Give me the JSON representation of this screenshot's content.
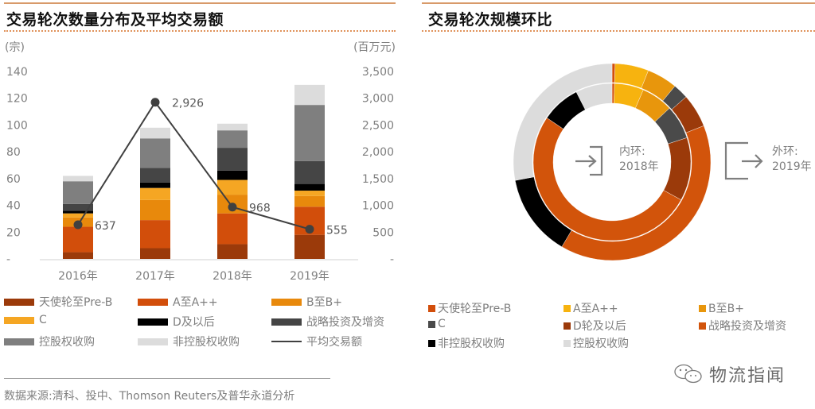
{
  "left_panel": {
    "title": "交易轮次数量分布及平均交易额",
    "left_axis_unit": "(宗)",
    "right_axis_unit": "(百万元)",
    "left_ticks": [
      "140",
      "120",
      "100",
      "80",
      "60",
      "40",
      "20",
      "-"
    ],
    "right_ticks": [
      "3,500",
      "3,000",
      "2,500",
      "2,000",
      "1,500",
      "1,000",
      "500",
      "-"
    ],
    "legend": [
      {
        "label": "天使轮至Pre-B",
        "color": "#9b3a0a",
        "type": "bar"
      },
      {
        "label": "A至A++",
        "color": "#d24e0b",
        "type": "bar"
      },
      {
        "label": "B至B+",
        "color": "#e8890c",
        "type": "bar"
      },
      {
        "label": "C",
        "color": "#f5a623",
        "type": "bar"
      },
      {
        "label": "D及以后",
        "color": "#000000",
        "type": "bar"
      },
      {
        "label": "战略投资及增资",
        "color": "#454545",
        "type": "bar"
      },
      {
        "label": "控股权收购",
        "color": "#7f7f7f",
        "type": "bar"
      },
      {
        "label": "非控股权收购",
        "color": "#dcdcdc",
        "type": "bar"
      },
      {
        "label": "平均交易额",
        "color": "#404040",
        "type": "line"
      }
    ],
    "source": "数据来源:清科、投中、Thomson Reuters及普华永道分析"
  },
  "right_panel": {
    "title": "交易轮次规模环比",
    "inner_label_line1": "内环:",
    "inner_label_line2": "2018年",
    "outer_label_line1": "外环:",
    "outer_label_line2": "2019年",
    "legend": [
      {
        "label": "天使轮至Pre-B",
        "color": "#d24e0b"
      },
      {
        "label": "A至A++",
        "color": "#f7b30f"
      },
      {
        "label": "B至B+",
        "color": "#e8960c"
      },
      {
        "label": "C",
        "color": "#4a4a4a"
      },
      {
        "label": "D轮及以后",
        "color": "#9b3a0a"
      },
      {
        "label": "战略投资及增资",
        "color": "#d2540b"
      },
      {
        "label": "非控股权收购",
        "color": "#000000"
      },
      {
        "label": "控股权收购",
        "color": "#dcdcdc"
      }
    ]
  },
  "watermark": "物流指闻",
  "chart_data": [
    {
      "type": "bar",
      "stacked": true,
      "title": "交易轮次数量分布及平均交易额",
      "categories": [
        "2016年",
        "2017年",
        "2018年",
        "2019年"
      ],
      "ylabel": "(宗)",
      "ylim": [
        0,
        140
      ],
      "y2label": "(百万元)",
      "y2lim": [
        0,
        3500
      ],
      "series": [
        {
          "name": "天使轮至Pre-B",
          "color": "#9b3a0a",
          "values": [
            5,
            8,
            11,
            18
          ]
        },
        {
          "name": "A至A++",
          "color": "#d24e0b",
          "values": [
            19,
            21,
            23,
            21
          ]
        },
        {
          "name": "B至B+",
          "color": "#e8890c",
          "values": [
            7,
            15,
            14,
            8
          ]
        },
        {
          "name": "C",
          "color": "#f5a623",
          "values": [
            3,
            9,
            11,
            4
          ]
        },
        {
          "name": "D及以后",
          "color": "#000000",
          "values": [
            2,
            4,
            7,
            5
          ]
        },
        {
          "name": "战略投资及增资",
          "color": "#454545",
          "values": [
            5,
            11,
            17,
            17
          ]
        },
        {
          "name": "控股权收购",
          "color": "#7f7f7f",
          "values": [
            17,
            22,
            13,
            42
          ]
        },
        {
          "name": "非控股权收购",
          "color": "#dcdcdc",
          "values": [
            4,
            8,
            5,
            15
          ]
        }
      ],
      "line_series": {
        "name": "平均交易额",
        "axis": "right",
        "values": [
          637,
          2926,
          968,
          555
        ],
        "labels": [
          "637",
          "2,926",
          "968",
          "555"
        ]
      },
      "legend_position": "bottom",
      "grid": false
    },
    {
      "type": "pie",
      "donut": true,
      "title": "交易轮次规模环比",
      "rings": [
        {
          "name": "内环:2018年",
          "categories": [
            "天使轮至Pre-B",
            "A至A++",
            "B至B+",
            "C",
            "D轮及以后",
            "战略投资及增资",
            "非控股权收购",
            "控股权收购"
          ],
          "values": [
            0.5,
            6,
            6.5,
            7,
            13,
            51.5,
            8,
            7.5
          ]
        },
        {
          "name": "外环:2019年",
          "categories": [
            "天使轮至Pre-B",
            "A至A++",
            "B至B+",
            "C",
            "D轮及以后",
            "战略投资及增资",
            "非控股权收购",
            "控股权收购"
          ],
          "values": [
            0.5,
            5.5,
            5,
            2.5,
            5.5,
            39.5,
            13.5,
            28
          ]
        }
      ],
      "legend_position": "bottom"
    }
  ]
}
